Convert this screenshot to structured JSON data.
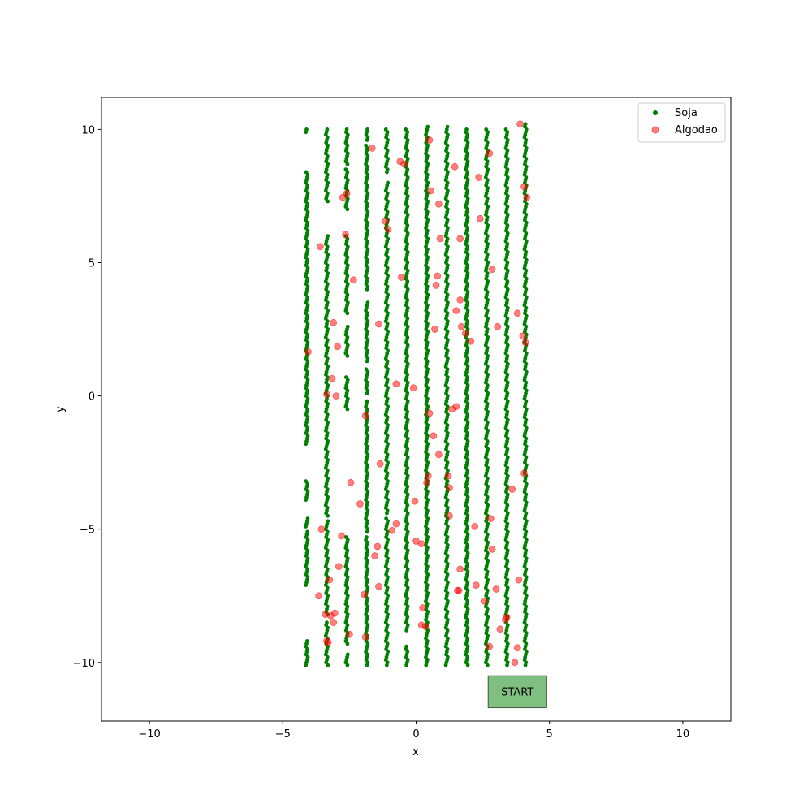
{
  "chart_data": {
    "type": "scatter",
    "title": "",
    "xlabel": "x",
    "ylabel": "y",
    "xlim": [
      -11.8,
      11.8
    ],
    "ylim": [
      -12.2,
      11.2
    ],
    "xticks": [
      -10,
      -5,
      0,
      5,
      10
    ],
    "yticks": [
      -10,
      -5,
      0,
      5,
      10
    ],
    "xtick_labels": [
      "−10",
      "−5",
      "0",
      "5",
      "10"
    ],
    "ytick_labels": [
      "−10",
      "−5",
      "0",
      "5",
      "10"
    ],
    "grid": false,
    "legend_position": "top-right",
    "series": [
      {
        "name": "Soja",
        "color": "#008000",
        "marker": "small-dot",
        "rows_x": [
          -4.1,
          -3.35,
          -2.6,
          -1.85,
          -1.1,
          -0.35,
          0.4,
          1.15,
          1.9,
          2.65,
          3.4,
          4.1
        ],
        "y_spacing": 0.1,
        "row_segments": [
          [
            [
              -10.1,
              -9.2
            ],
            [
              -7.1,
              -5.1
            ],
            [
              -4.9,
              -4.6
            ],
            [
              -3.9,
              -3.2
            ],
            [
              -1.8,
              8.4
            ],
            [
              9.9,
              10.0
            ]
          ],
          [
            [
              -10.1,
              -8.5
            ],
            [
              -8.2,
              -4.7
            ],
            [
              -4.5,
              6.0
            ],
            [
              7.3,
              10.0
            ]
          ],
          [
            [
              -10.1,
              -9.7
            ],
            [
              -9.3,
              -5.3
            ],
            [
              -0.5,
              0.7
            ],
            [
              1.5,
              2.6
            ],
            [
              3.1,
              6.0
            ],
            [
              7.0,
              8.5
            ],
            [
              8.7,
              10.0
            ]
          ],
          [
            [
              -10.1,
              -5.3
            ],
            [
              -5.1,
              -0.2
            ],
            [
              0.1,
              1.0
            ],
            [
              1.3,
              3.5
            ],
            [
              4.0,
              9.4
            ],
            [
              9.6,
              10.0
            ]
          ],
          [
            [
              -10.1,
              -4.6
            ],
            [
              -4.4,
              8.0
            ],
            [
              8.4,
              10.0
            ]
          ],
          [
            [
              -10.1,
              -9.4
            ],
            [
              -8.8,
              10.0
            ]
          ],
          [
            [
              -10.1,
              10.1
            ]
          ],
          [
            [
              -10.1,
              10.1
            ]
          ],
          [
            [
              -10.1,
              10.0
            ]
          ],
          [
            [
              -10.1,
              10.0
            ]
          ],
          [
            [
              -10.1,
              10.0
            ]
          ],
          [
            [
              -10.1,
              10.2
            ]
          ]
        ]
      },
      {
        "name": "Algodao",
        "color": "#ff0000",
        "opacity": 0.5,
        "marker": "circle",
        "points": [
          [
            3.9,
            10.2
          ],
          [
            -1.65,
            9.3
          ],
          [
            2.75,
            9.1
          ],
          [
            0.5,
            9.6
          ],
          [
            -0.6,
            8.8
          ],
          [
            -0.45,
            8.7
          ],
          [
            1.45,
            8.6
          ],
          [
            2.35,
            8.2
          ],
          [
            4.05,
            7.85
          ],
          [
            -2.6,
            7.6
          ],
          [
            -2.75,
            7.45
          ],
          [
            4.15,
            7.45
          ],
          [
            0.55,
            7.7
          ],
          [
            0.85,
            7.2
          ],
          [
            -1.15,
            6.55
          ],
          [
            -1.05,
            6.25
          ],
          [
            2.4,
            6.65
          ],
          [
            -2.65,
            6.05
          ],
          [
            0.9,
            5.9
          ],
          [
            1.65,
            5.9
          ],
          [
            -3.6,
            5.6
          ],
          [
            2.85,
            4.75
          ],
          [
            -2.35,
            4.35
          ],
          [
            -0.55,
            4.45
          ],
          [
            0.8,
            4.5
          ],
          [
            0.75,
            4.15
          ],
          [
            1.65,
            3.6
          ],
          [
            1.5,
            3.2
          ],
          [
            3.8,
            3.1
          ],
          [
            -3.1,
            2.75
          ],
          [
            -1.4,
            2.7
          ],
          [
            0.7,
            2.5
          ],
          [
            1.7,
            2.6
          ],
          [
            3.05,
            2.6
          ],
          [
            1.85,
            2.35
          ],
          [
            4.0,
            2.25
          ],
          [
            2.05,
            2.05
          ],
          [
            4.1,
            2.0
          ],
          [
            -2.95,
            1.85
          ],
          [
            -4.05,
            1.65
          ],
          [
            -3.15,
            0.65
          ],
          [
            -0.75,
            0.45
          ],
          [
            -0.1,
            0.3
          ],
          [
            -3.35,
            0.05
          ],
          [
            -3.0,
            0.0
          ],
          [
            1.5,
            -0.4
          ],
          [
            1.35,
            -0.5
          ],
          [
            0.5,
            -0.65
          ],
          [
            -1.9,
            -0.75
          ],
          [
            0.65,
            -1.5
          ],
          [
            0.85,
            -2.2
          ],
          [
            -1.35,
            -2.55
          ],
          [
            4.05,
            -2.9
          ],
          [
            1.2,
            -3.0
          ],
          [
            0.45,
            -3.0
          ],
          [
            0.4,
            -3.25
          ],
          [
            -2.45,
            -3.25
          ],
          [
            1.25,
            -3.45
          ],
          [
            3.6,
            -3.5
          ],
          [
            -0.05,
            -3.95
          ],
          [
            -2.1,
            -4.05
          ],
          [
            1.25,
            -4.5
          ],
          [
            2.8,
            -4.6
          ],
          [
            -0.75,
            -4.8
          ],
          [
            2.2,
            -4.9
          ],
          [
            -3.55,
            -5.0
          ],
          [
            -0.9,
            -5.05
          ],
          [
            -2.8,
            -5.25
          ],
          [
            0.0,
            -5.45
          ],
          [
            0.2,
            -5.55
          ],
          [
            -1.45,
            -5.65
          ],
          [
            2.85,
            -5.75
          ],
          [
            -1.55,
            -6.0
          ],
          [
            -2.9,
            -6.4
          ],
          [
            1.65,
            -6.5
          ],
          [
            3.85,
            -6.9
          ],
          [
            -3.25,
            -6.9
          ],
          [
            2.25,
            -7.1
          ],
          [
            -1.4,
            -7.15
          ],
          [
            3.0,
            -7.25
          ],
          [
            1.55,
            -7.3
          ],
          [
            1.6,
            -7.3
          ],
          [
            -3.65,
            -7.5
          ],
          [
            -1.95,
            -7.45
          ],
          [
            2.55,
            -7.7
          ],
          [
            0.25,
            -7.95
          ],
          [
            -3.05,
            -8.15
          ],
          [
            -3.2,
            -8.25
          ],
          [
            -3.4,
            -8.2
          ],
          [
            3.4,
            -8.3
          ],
          [
            3.35,
            -8.4
          ],
          [
            -3.1,
            -8.5
          ],
          [
            0.2,
            -8.6
          ],
          [
            0.35,
            -8.65
          ],
          [
            3.15,
            -8.75
          ],
          [
            -2.5,
            -8.95
          ],
          [
            -1.9,
            -9.05
          ],
          [
            -3.35,
            -9.2
          ],
          [
            -3.3,
            -9.25
          ],
          [
            3.8,
            -9.45
          ],
          [
            2.75,
            -9.4
          ],
          [
            3.7,
            -10.0
          ]
        ]
      }
    ],
    "annotations": [
      {
        "text": "START",
        "x_range": [
          2.7,
          4.9
        ],
        "y_range": [
          -11.7,
          -10.5
        ],
        "fill": "#008000",
        "fill_opacity": 0.5
      }
    ]
  }
}
